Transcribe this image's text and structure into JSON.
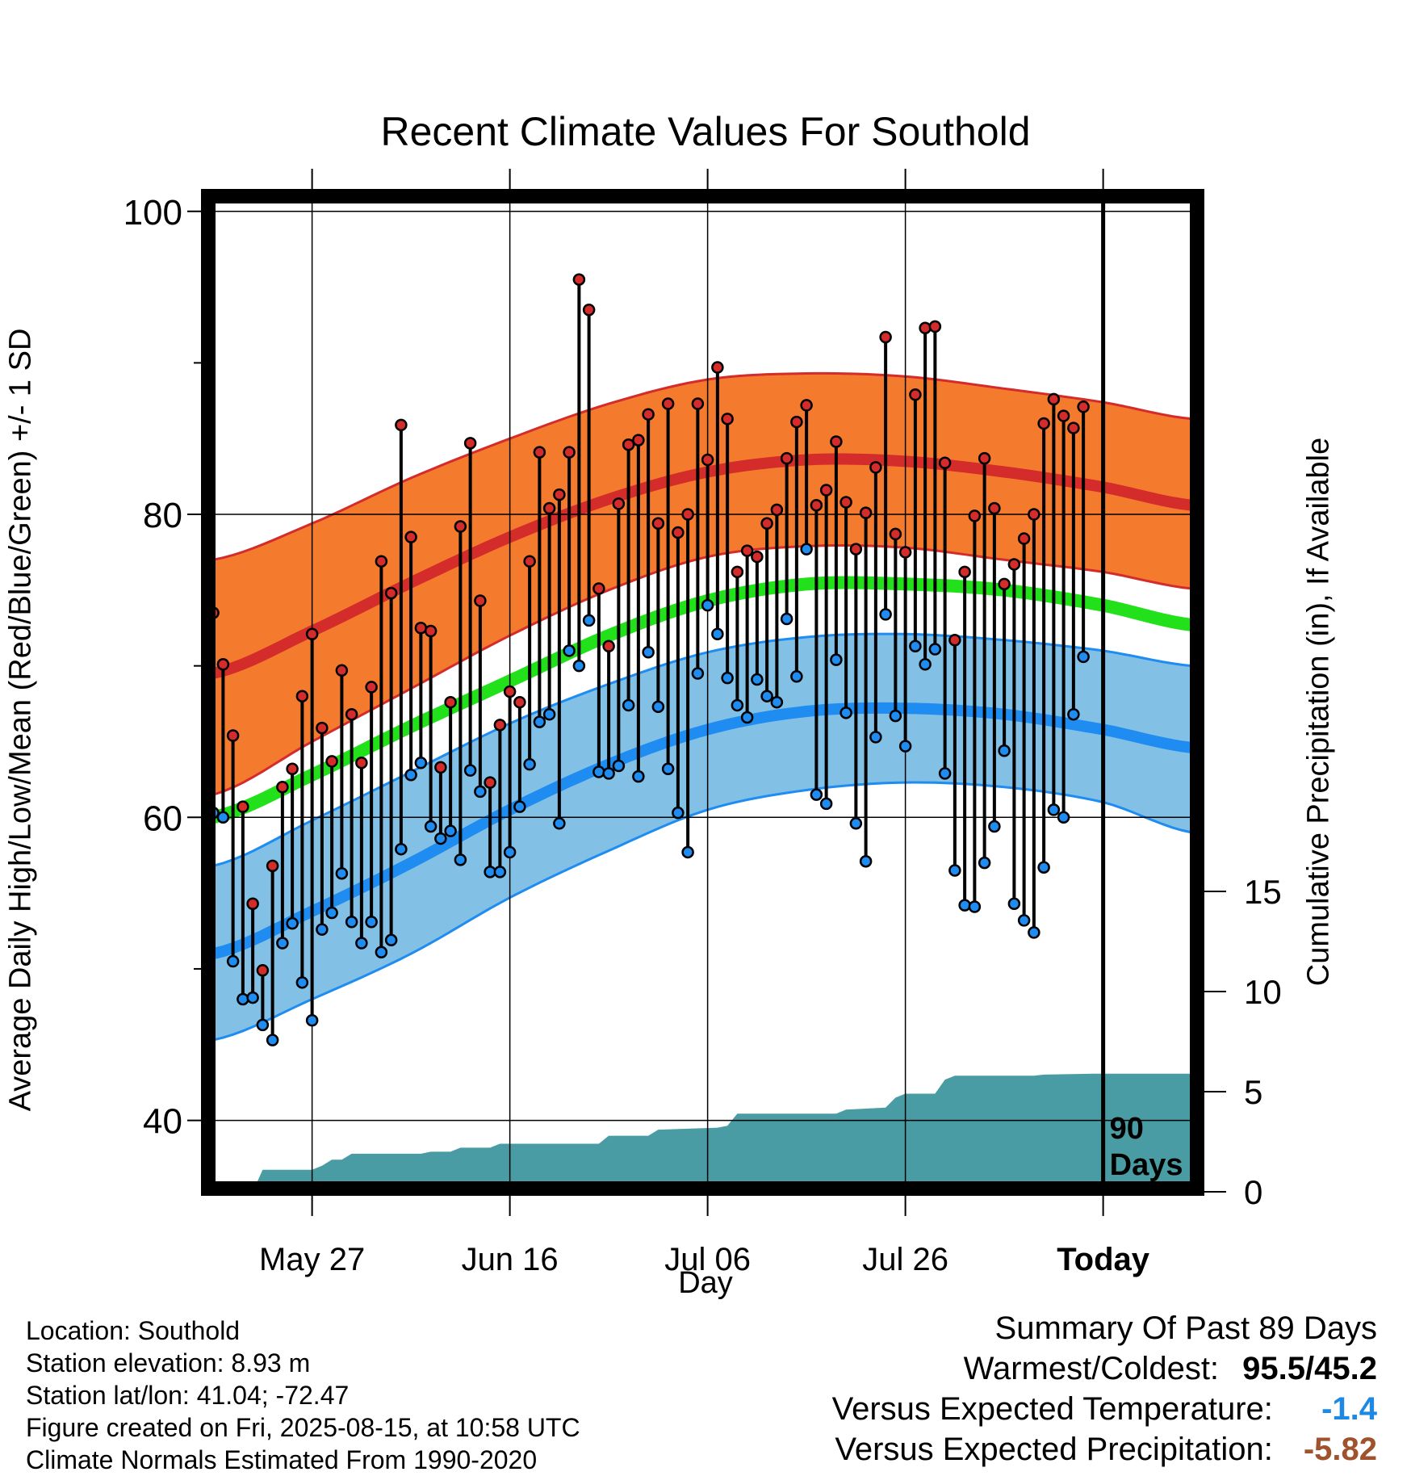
{
  "title": "Recent Climate Values For Southold",
  "y_label_left": "Average Daily High/Low/Mean (Red/Blue/Green) +/- 1 SD",
  "y_label_right": "Cumulative Precipitation (in), If Available",
  "x_label": "Day",
  "days_label": [
    "90",
    "Days"
  ],
  "metadata": [
    "Location: Southold",
    "Station elevation: 8.93 m",
    "Station lat/lon: 41.04; -72.47",
    "Figure created on Fri, 2025-08-15, at 10:58 UTC",
    "Climate Normals Estimated From 1990-2020"
  ],
  "summary": {
    "heading": "Summary Of Past 89 Days",
    "warmest_coldest_label": "Warmest/Coldest:",
    "warmest_coldest_value": "95.5/45.2",
    "temp_label": "Versus Expected Temperature:",
    "temp_value": "-1.4",
    "precip_label": "Versus Expected Precipitation:",
    "precip_value": "-5.82",
    "temp_color": "#1e88e5",
    "precip_color": "#a0522d"
  },
  "colors": {
    "high_band": "#f47a2e",
    "high_line": "#d42b2b",
    "low_band": "#82c0e6",
    "low_line": "#1e8cf0",
    "mean_line": "#22e01a",
    "precip": "#4a9ca4",
    "high_dot": "#d42b2b",
    "low_dot": "#1e8cf0"
  },
  "chart_data": {
    "type": "line",
    "y_left_range": [
      35.5,
      101
    ],
    "y_left_ticks": [
      40,
      60,
      80,
      100
    ],
    "y_right_ticks": [
      0,
      5,
      10,
      15
    ],
    "x_ticks": [
      {
        "day": 10,
        "label": "May 27"
      },
      {
        "day": 30,
        "label": "Jun 16"
      },
      {
        "day": 50,
        "label": "Jul 06"
      },
      {
        "day": 70,
        "label": "Jul 26"
      },
      {
        "day": 90,
        "label": "Today"
      }
    ],
    "x_range": [
      -0.5,
      99.5
    ],
    "today_day": 90,
    "normal_days": [
      0,
      10,
      20,
      30,
      40,
      50,
      60,
      70,
      80,
      90,
      99
    ],
    "normal_high": [
      69.5,
      72.3,
      75.5,
      78.5,
      81,
      82.8,
      83.6,
      83.5,
      82.8,
      81.8,
      80.6
    ],
    "normal_high_sd_upper": [
      77,
      79.4,
      82.4,
      85,
      87.3,
      88.9,
      89.3,
      89.1,
      88.3,
      87.4,
      86.3
    ],
    "normal_high_sd_lower": [
      61.5,
      65,
      68.5,
      72,
      75,
      77.2,
      77.9,
      77.8,
      77,
      76.2,
      75.1
    ],
    "normal_mean": [
      60,
      62.8,
      66,
      69,
      72,
      74.3,
      75.4,
      75.4,
      75,
      74,
      72.7
    ],
    "normal_low": [
      51,
      53.8,
      57,
      60.5,
      63.5,
      65.8,
      67,
      67.2,
      66.8,
      65.8,
      64.6
    ],
    "normal_low_sd_upper": [
      56.8,
      59.8,
      63,
      66.2,
      68.8,
      70.9,
      71.9,
      72.1,
      71.7,
      71,
      70
    ],
    "normal_low_sd_lower": [
      45.3,
      48,
      51,
      54.7,
      57.8,
      60.5,
      61.8,
      62.3,
      62,
      61,
      59
    ],
    "observations": [
      {
        "day": 0,
        "high": 73.5,
        "low": 60.3
      },
      {
        "day": 1,
        "high": 70.1,
        "low": 60
      },
      {
        "day": 2,
        "high": 65.4,
        "low": 50.5
      },
      {
        "day": 3,
        "high": 60.7,
        "low": 48
      },
      {
        "day": 4,
        "high": 54.3,
        "low": 48.1
      },
      {
        "day": 5,
        "high": 49.9,
        "low": 46.3
      },
      {
        "day": 6,
        "high": 56.8,
        "low": 45.3
      },
      {
        "day": 7,
        "high": 62,
        "low": 51.7
      },
      {
        "day": 8,
        "high": 63.2,
        "low": 53
      },
      {
        "day": 9,
        "high": 68,
        "low": 49.1
      },
      {
        "day": 10,
        "high": 72.1,
        "low": 46.6
      },
      {
        "day": 11,
        "high": 65.9,
        "low": 52.6
      },
      {
        "day": 12,
        "high": 63.7,
        "low": 53.7
      },
      {
        "day": 13,
        "high": 69.7,
        "low": 56.3
      },
      {
        "day": 14,
        "high": 66.8,
        "low": 53.1
      },
      {
        "day": 15,
        "high": 63.6,
        "low": 51.7
      },
      {
        "day": 16,
        "high": 68.6,
        "low": 53.1
      },
      {
        "day": 17,
        "high": 76.9,
        "low": 51.1
      },
      {
        "day": 18,
        "high": 74.8,
        "low": 51.9
      },
      {
        "day": 19,
        "high": 85.9,
        "low": 57.9
      },
      {
        "day": 20,
        "high": 78.5,
        "low": 62.8
      },
      {
        "day": 21,
        "high": 72.5,
        "low": 63.6
      },
      {
        "day": 22,
        "high": 72.3,
        "low": 59.4
      },
      {
        "day": 23,
        "high": 63.3,
        "low": 58.6
      },
      {
        "day": 24,
        "high": 67.6,
        "low": 59.1
      },
      {
        "day": 25,
        "high": 79.2,
        "low": 57.2
      },
      {
        "day": 26,
        "high": 84.7,
        "low": 63.1
      },
      {
        "day": 27,
        "high": 74.3,
        "low": 61.7
      },
      {
        "day": 28,
        "high": 62.3,
        "low": 56.4
      },
      {
        "day": 29,
        "high": 66.1,
        "low": 56.4
      },
      {
        "day": 30,
        "high": 68.3,
        "low": 57.7
      },
      {
        "day": 31,
        "high": 67.6,
        "low": 60.7
      },
      {
        "day": 32,
        "high": 76.9,
        "low": 63.5
      },
      {
        "day": 33,
        "high": 84.1,
        "low": 66.3
      },
      {
        "day": 34,
        "high": 80.4,
        "low": 66.8
      },
      {
        "day": 35,
        "high": 81.3,
        "low": 59.6
      },
      {
        "day": 36,
        "high": 84.1,
        "low": 71
      },
      {
        "day": 37,
        "high": 95.5,
        "low": 70
      },
      {
        "day": 38,
        "high": 93.5,
        "low": 73
      },
      {
        "day": 39,
        "high": 75.1,
        "low": 63
      },
      {
        "day": 40,
        "high": 71.3,
        "low": 62.9
      },
      {
        "day": 41,
        "high": 80.7,
        "low": 63.4
      },
      {
        "day": 42,
        "high": 84.6,
        "low": 67.4
      },
      {
        "day": 43,
        "high": 84.9,
        "low": 62.7
      },
      {
        "day": 44,
        "high": 86.6,
        "low": 70.9
      },
      {
        "day": 45,
        "high": 79.4,
        "low": 67.3
      },
      {
        "day": 46,
        "high": 87.3,
        "low": 63.2
      },
      {
        "day": 47,
        "high": 78.8,
        "low": 60.3
      },
      {
        "day": 48,
        "high": 80,
        "low": 57.7
      },
      {
        "day": 49,
        "high": 87.3,
        "low": 69.5
      },
      {
        "day": 50,
        "high": 83.6,
        "low": 74
      },
      {
        "day": 51,
        "high": 89.7,
        "low": 72.1
      },
      {
        "day": 52,
        "high": 86.3,
        "low": 69.2
      },
      {
        "day": 53,
        "high": 76.2,
        "low": 67.4
      },
      {
        "day": 54,
        "high": 77.6,
        "low": 66.6
      },
      {
        "day": 55,
        "high": 77.2,
        "low": 69.1
      },
      {
        "day": 56,
        "high": 79.4,
        "low": 68
      },
      {
        "day": 57,
        "high": 80.3,
        "low": 67.6
      },
      {
        "day": 58,
        "high": 83.7,
        "low": 73.1
      },
      {
        "day": 59,
        "high": 86.1,
        "low": 69.3
      },
      {
        "day": 60,
        "high": 87.2,
        "low": 77.7
      },
      {
        "day": 61,
        "high": 80.6,
        "low": 61.5
      },
      {
        "day": 62,
        "high": 81.6,
        "low": 60.9
      },
      {
        "day": 63,
        "high": 84.8,
        "low": 70.4
      },
      {
        "day": 64,
        "high": 80.8,
        "low": 66.9
      },
      {
        "day": 65,
        "high": 77.7,
        "low": 59.6
      },
      {
        "day": 66,
        "high": 80.1,
        "low": 57.1
      },
      {
        "day": 67,
        "high": 83.1,
        "low": 65.3
      },
      {
        "day": 68,
        "high": 91.7,
        "low": 73.4
      },
      {
        "day": 69,
        "high": 78.7,
        "low": 66.7
      },
      {
        "day": 70,
        "high": 77.5,
        "low": 64.7
      },
      {
        "day": 71,
        "high": 87.9,
        "low": 71.3
      },
      {
        "day": 72,
        "high": 92.3,
        "low": 70.1
      },
      {
        "day": 73,
        "high": 92.4,
        "low": 71.1
      },
      {
        "day": 74,
        "high": 83.4,
        "low": 62.9
      },
      {
        "day": 75,
        "high": 71.7,
        "low": 56.5
      },
      {
        "day": 76,
        "high": 76.2,
        "low": 54.2
      },
      {
        "day": 77,
        "high": 79.9,
        "low": 54.1
      },
      {
        "day": 78,
        "high": 83.7,
        "low": 57
      },
      {
        "day": 79,
        "high": 80.4,
        "low": 59.4
      },
      {
        "day": 80,
        "high": 75.4,
        "low": 64.4
      },
      {
        "day": 81,
        "high": 76.7,
        "low": 54.3
      },
      {
        "day": 82,
        "high": 78.4,
        "low": 53.2
      },
      {
        "day": 83,
        "high": 80,
        "low": 52.4
      },
      {
        "day": 84,
        "high": 86,
        "low": 56.7
      },
      {
        "day": 85,
        "high": 87.6,
        "low": 60.5
      },
      {
        "day": 86,
        "high": 86.5,
        "low": 60
      },
      {
        "day": 87,
        "high": 85.7,
        "low": 66.8
      },
      {
        "day": 88,
        "high": 87.1,
        "low": 70.6
      }
    ],
    "precipitation_cumulative": [
      {
        "day": 0,
        "value": 0
      },
      {
        "day": 4,
        "value": 0
      },
      {
        "day": 5,
        "value": 1.1
      },
      {
        "day": 10,
        "value": 1.1
      },
      {
        "day": 11,
        "value": 1.3
      },
      {
        "day": 12,
        "value": 1.6
      },
      {
        "day": 13,
        "value": 1.6
      },
      {
        "day": 14,
        "value": 1.9
      },
      {
        "day": 21,
        "value": 1.9
      },
      {
        "day": 22,
        "value": 2
      },
      {
        "day": 24,
        "value": 2
      },
      {
        "day": 25,
        "value": 2.2
      },
      {
        "day": 28,
        "value": 2.2
      },
      {
        "day": 29,
        "value": 2.4
      },
      {
        "day": 39,
        "value": 2.4
      },
      {
        "day": 40,
        "value": 2.8
      },
      {
        "day": 44,
        "value": 2.8
      },
      {
        "day": 45,
        "value": 3.1
      },
      {
        "day": 51,
        "value": 3.2
      },
      {
        "day": 52,
        "value": 3.3
      },
      {
        "day": 53,
        "value": 3.9
      },
      {
        "day": 63,
        "value": 3.9
      },
      {
        "day": 64,
        "value": 4.1
      },
      {
        "day": 68,
        "value": 4.2
      },
      {
        "day": 69,
        "value": 4.7
      },
      {
        "day": 70,
        "value": 4.9
      },
      {
        "day": 73,
        "value": 4.9
      },
      {
        "day": 74,
        "value": 5.6
      },
      {
        "day": 75,
        "value": 5.8
      },
      {
        "day": 83,
        "value": 5.8
      },
      {
        "day": 84,
        "value": 5.85
      },
      {
        "day": 89,
        "value": 5.9
      },
      {
        "day": 99.5,
        "value": 5.9
      }
    ]
  }
}
